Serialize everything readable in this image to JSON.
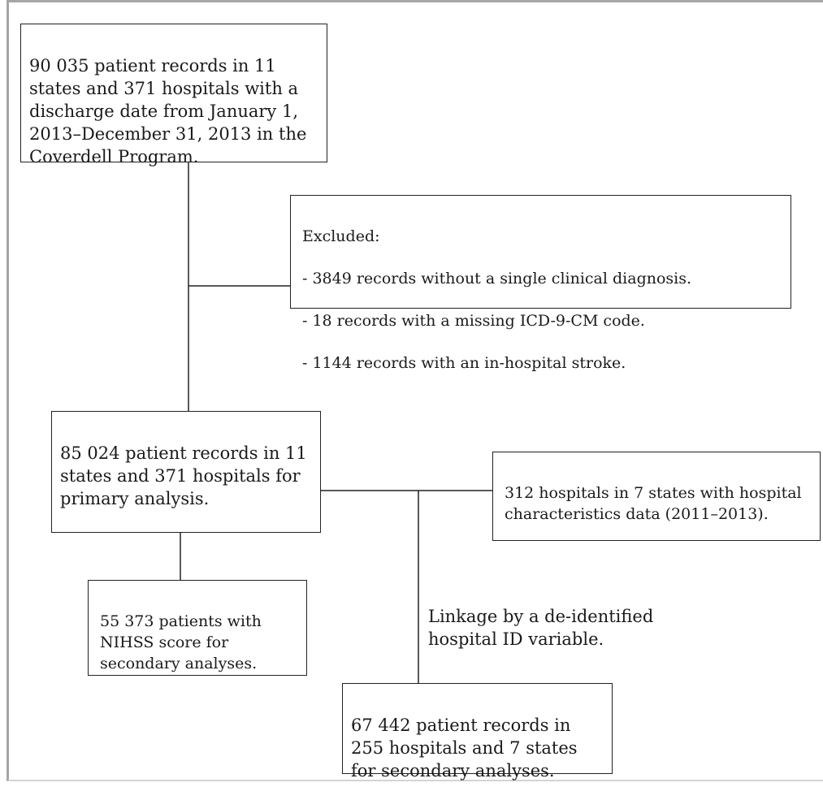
{
  "diagram": {
    "records_box": "90 035 patient records in 11 states and 371 hospitals with a discharge date from January 1, 2013–December 31, 2013 in the Coverdell Program.",
    "excluded_box": {
      "title": "Excluded:",
      "items": [
        "- 3849 records without a single clinical diagnosis.",
        "- 18 records with a missing ICD-9-CM code.",
        "- 1144 records with an in-hospital stroke."
      ]
    },
    "primary_box": "85 024 patient records in 11 states and 371 hospitals for primary analysis.",
    "hospitals_box": "312 hospitals in 7 states with hospital characteristics data (2011–2013).",
    "nihss_box": "55 373 patients with NIHSS score for secondary analyses.",
    "linkage_label": "Linkage by a de-identified hospital ID variable.",
    "secondary_box": "67 442 patient records in 255 hospitals and 7 states for secondary analyses."
  }
}
